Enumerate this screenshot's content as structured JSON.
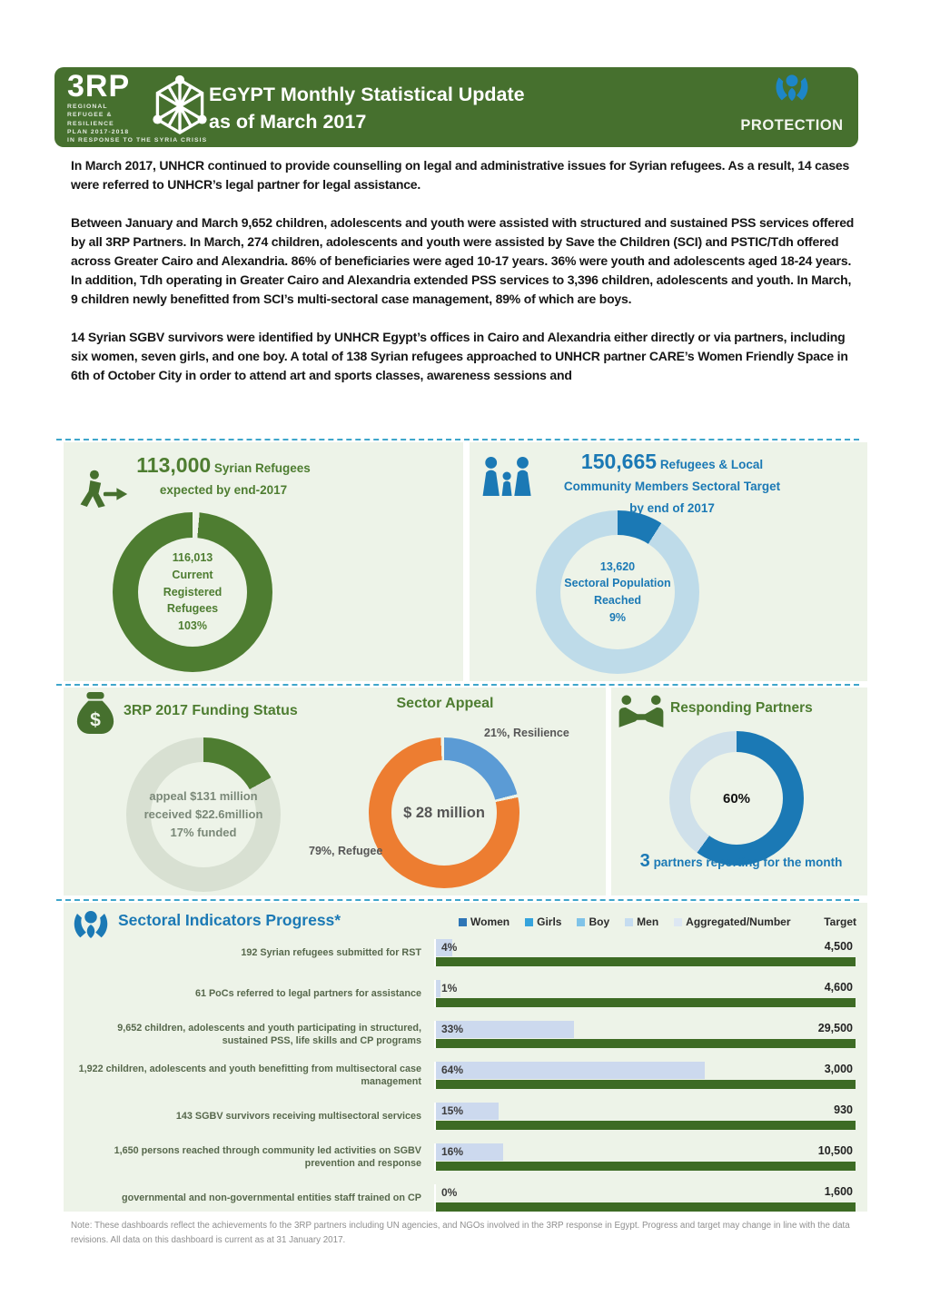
{
  "header": {
    "brand": "3RP",
    "brand_sub": [
      "REGIONAL",
      "REFUGEE &",
      "RESILIENCE",
      "PLAN 2017-2018",
      "IN RESPONSE TO THE SYRIA CRISIS"
    ],
    "title_line1": "EGYPT Monthly Statistical Update",
    "title_line2": "as of March 2017",
    "badge_label": "PROTECTION"
  },
  "paragraphs": [
    "In March 2017, UNHCR continued to provide counselling on legal and administrative issues for Syrian refugees. As a result, 14 cases were referred to UNHCR’s legal partner for legal assistance.",
    "Between January and March 9,652 children, adolescents and youth were assisted with structured and sustained PSS services offered by all 3RP Partners. In March, 274 children, adolescents and youth were assisted by Save the Children (SCI) and PSTIC/Tdh offered across Greater Cairo and Alexandria. 86% of beneficiaries were aged 10-17 years. 36% were youth and adolescents aged 18-24 years. In addition, Tdh operating in Greater Cairo and Alexandria extended PSS services to 3,396 children, adolescents and youth. In March, 9 children newly benefitted from SCI’s multi-sectoral case management, 89% of which are boys.",
    "14 Syrian SGBV survivors were identified by UNHCR Egypt’s offices in Cairo and Alexandria either directly or via partners, including six women, seven girls, and one boy. A total of 138 Syrian refugees approached to UNHCR partner CARE’s Women Friendly Space in 6th of October City in order to attend art and sports classes, awareness sessions and"
  ],
  "population": {
    "left": {
      "headline_value": "113,000",
      "headline_text": "Syrian Refugees",
      "headline_line2": "expected by end-2017",
      "center_lines": [
        "116,013",
        "Current",
        "Registered",
        "Refugees",
        "103%"
      ]
    },
    "right": {
      "headline_value": "150,665",
      "headline_text": "Refugees & Local",
      "headline_line2": "Community Members Sectoral Target",
      "headline_line3": "by end of 2017",
      "center_lines": [
        "13,620",
        "Sectoral Population",
        "Reached",
        "9%"
      ]
    }
  },
  "funding": {
    "title": "3RP 2017 Funding Status",
    "center_lines": [
      "appeal $131 million",
      "received $22.6million",
      "17% funded"
    ]
  },
  "appeal": {
    "title": "Sector Appeal",
    "center_label": "$ 28 million",
    "label_resilience": "21%, Resilience",
    "label_refugee": "79%, Refugee"
  },
  "partners": {
    "title": "Responding Partners",
    "center_label": "60%",
    "footer_value": "3",
    "footer_text": "partners reporting for the month"
  },
  "indicators": {
    "title": "Sectoral Indicators Progress*",
    "legend": [
      {
        "label": "Women",
        "color": "#2e75b6"
      },
      {
        "label": "Girls",
        "color": "#35a3dc"
      },
      {
        "label": "Boy",
        "color": "#7fc3e8"
      },
      {
        "label": "Men",
        "color": "#c5dcf0"
      },
      {
        "label": "Aggregated/Number",
        "color": "#dde7f3"
      },
      {
        "label": "Target",
        "color": null
      }
    ],
    "rows": [
      {
        "label": "192 Syrian refugees submitted for RST",
        "pct": 4,
        "pct_label": "4%",
        "target": "4,500"
      },
      {
        "label": "61 PoCs referred to legal partners for assistance",
        "pct": 1,
        "pct_label": "1%",
        "target": "4,600"
      },
      {
        "label": "9,652 children, adolescents and youth participating in structured, sustained PSS, life skills and CP programs",
        "pct": 33,
        "pct_label": "33%",
        "target": "29,500"
      },
      {
        "label": "1,922 children, adolescents and youth benefitting from multisectoral case management",
        "pct": 64,
        "pct_label": "64%",
        "target": "3,000"
      },
      {
        "label": "143 SGBV survivors receiving multisectoral services",
        "pct": 15,
        "pct_label": "15%",
        "target": "930"
      },
      {
        "label": "1,650 persons reached through community led activities on SGBV prevention and response",
        "pct": 16,
        "pct_label": "16%",
        "target": "10,500"
      },
      {
        "label": "governmental and non-governmental entities staff trained on CP",
        "pct": 0,
        "pct_label": "0%",
        "target": "1,600"
      }
    ]
  },
  "note": "Note: These dashboards reflect the achievements fo the 3RP partners including UN agencies, and NGOs involved in the 3RP response in Egypt. Progress and target may change in line with the data revisions. All data on this dashboard is current as at 31 January 2017.",
  "colors": {
    "banner_green": "#46702e",
    "dark_green": "#4e7d31",
    "target_bar_green": "#3d6b24",
    "panel_bg": "#edf3e8",
    "dashed_blue": "#3fa6cb",
    "primary_blue": "#1b79b5",
    "light_blue_ring": "#bedbe9",
    "pale_ring": "#d8e0d2",
    "orange": "#ed7d31",
    "appeal_blue": "#5b9bd5",
    "partners_light": "#cfe0ea",
    "progress_bar": "#ccd9ee"
  },
  "chart_data": [
    {
      "id": "registered_refugees",
      "type": "pie",
      "title": "113,000 Syrian Refugees expected by end-2017",
      "target": 113000,
      "current_registered": 116013,
      "pct_of_target": 103,
      "center_label": "116,013 Current Registered Refugees 103%",
      "segments": [
        {
          "name": "notch",
          "pct": 1.4,
          "color": "#edf3e8"
        },
        {
          "name": "Current Registered Refugees 103%",
          "pct": 98.6,
          "color": "#4e7d31"
        }
      ]
    },
    {
      "id": "sectoral_population",
      "type": "pie",
      "title": "150,665 Refugees & Local Community Members Sectoral Target by end of 2017",
      "target": 150665,
      "reached": 13620,
      "pct_reached": 9,
      "center_label": "13,620 Sectoral Population Reached 9%",
      "segments": [
        {
          "name": "Sectoral Population Reached 9%",
          "pct": 9,
          "color": "#1b79b5"
        },
        {
          "name": "Remaining",
          "pct": 91,
          "color": "#bedbe9"
        }
      ]
    },
    {
      "id": "funding_status",
      "type": "pie",
      "title": "3RP 2017 Funding Status",
      "appeal_million_usd": 131,
      "received_million_usd": 22.6,
      "pct_funded": 17,
      "center_label": "appeal $131 million received $22.6million 17% funded",
      "segments": [
        {
          "name": "Funded 17%",
          "pct": 17,
          "color": "#4e7d31"
        },
        {
          "name": "Unfunded",
          "pct": 83,
          "color": "#d8e0d2"
        }
      ]
    },
    {
      "id": "sector_appeal",
      "type": "pie",
      "title": "Sector Appeal",
      "total_label": "$ 28 million",
      "segments": [
        {
          "name": "Resilience 21%",
          "pct": 21,
          "color": "#5b9bd5"
        },
        {
          "name": "gap",
          "pct": 0.7,
          "color": "#edf3e8"
        },
        {
          "name": "Refugee 79%",
          "pct": 77.6,
          "color": "#ed7d31"
        },
        {
          "name": "gap",
          "pct": 0.7,
          "color": "#edf3e8"
        }
      ]
    },
    {
      "id": "responding_partners",
      "type": "pie",
      "title": "Responding Partners",
      "pct_reporting": 60,
      "partners_reporting": 3,
      "segments": [
        {
          "name": "Reporting 60%",
          "pct": 60,
          "color": "#1b79b5"
        },
        {
          "name": "Not reporting",
          "pct": 40,
          "color": "#cfe0ea"
        }
      ]
    },
    {
      "id": "sectoral_indicators",
      "type": "bar",
      "title": "Sectoral Indicators Progress*",
      "legend": [
        "Women",
        "Girls",
        "Boy",
        "Men",
        "Aggregated/Number",
        "Target"
      ],
      "categories": [
        "192 Syrian refugees submitted for RST",
        "61 PoCs referred to legal partners for assistance",
        "9,652 children, adolescents and youth participating in structured, sustained PSS, life skills and CP programs",
        "1,922 children, adolescents and youth benefitting from multisectoral case management",
        "143 SGBV survivors receiving multisectoral services",
        "1,650 persons reached through community led activities on SGBV prevention and response",
        "governmental and non-governmental entities staff trained on CP"
      ],
      "series": [
        {
          "name": "Progress %",
          "values": [
            4,
            1,
            33,
            64,
            15,
            16,
            0
          ]
        },
        {
          "name": "Target",
          "values": [
            4500,
            4600,
            29500,
            3000,
            930,
            10500,
            1600
          ]
        }
      ],
      "xlim_pct": [
        0,
        100
      ]
    }
  ]
}
